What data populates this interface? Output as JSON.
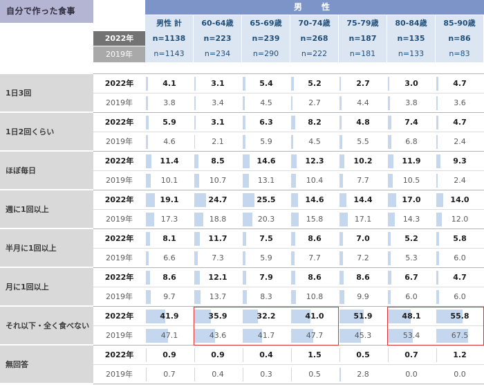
{
  "title": "自分で作った食事",
  "group_header": "男　性",
  "year_labels": {
    "y2022": "2022年",
    "y2019": "2019年"
  },
  "colors": {
    "title_bg": "#B4B4D3",
    "group_header_bg": "#7C94C7",
    "column_header_bg": "#DCE6F2",
    "header_text": "#1F4E79",
    "year2022_header_bg": "#737373",
    "year2019_header_bg": "#A9A9A9",
    "category_bg": "#D9D9D9",
    "bar": "#C5D7EE",
    "highlight_border": "#e03131"
  },
  "chart_data": {
    "type": "table",
    "title": "自分で作った食事",
    "group_header": "男　性",
    "columns": [
      "男性 計",
      "60-64歳",
      "65-69歳",
      "70-74歳",
      "75-79歳",
      "80-84歳",
      "85-90歳"
    ],
    "n_2022": [
      "n=1138",
      "n=223",
      "n=239",
      "n=268",
      "n=187",
      "n=135",
      "n=86"
    ],
    "n_2019": [
      "n=1143",
      "n=234",
      "n=290",
      "n=222",
      "n=181",
      "n=133",
      "n=83"
    ],
    "bar_scale_max": 100,
    "rows": [
      {
        "category": "1日3回",
        "v2022": [
          4.1,
          3.1,
          5.4,
          5.2,
          2.7,
          3.0,
          4.7
        ],
        "v2019": [
          3.8,
          3.4,
          4.5,
          2.7,
          4.4,
          3.8,
          3.6
        ]
      },
      {
        "category": "1日2回くらい",
        "v2022": [
          5.9,
          3.1,
          6.3,
          8.2,
          4.8,
          7.4,
          4.7
        ],
        "v2019": [
          4.6,
          2.1,
          5.9,
          4.5,
          5.5,
          6.8,
          2.4
        ]
      },
      {
        "category": "ほぼ毎日",
        "v2022": [
          11.4,
          8.5,
          14.6,
          12.3,
          10.2,
          11.9,
          9.3
        ],
        "v2019": [
          10.1,
          10.7,
          13.1,
          10.4,
          7.7,
          10.5,
          2.4
        ]
      },
      {
        "category": "週に1回以上",
        "v2022": [
          19.1,
          24.7,
          25.5,
          14.6,
          14.4,
          17.0,
          14.0
        ],
        "v2019": [
          17.3,
          18.8,
          20.3,
          15.8,
          17.1,
          14.3,
          12.0
        ]
      },
      {
        "category": "半月に1回以上",
        "v2022": [
          8.1,
          11.7,
          7.5,
          8.6,
          7.0,
          5.2,
          5.8
        ],
        "v2019": [
          6.6,
          7.3,
          5.9,
          7.7,
          7.2,
          5.3,
          6.0
        ]
      },
      {
        "category": "月に1回以上",
        "v2022": [
          8.6,
          12.1,
          7.9,
          8.6,
          8.6,
          6.7,
          4.7
        ],
        "v2019": [
          9.7,
          13.7,
          8.3,
          10.8,
          9.9,
          6.0,
          6.0
        ]
      },
      {
        "category": "それ以下・全く食べない",
        "v2022": [
          41.9,
          35.9,
          32.2,
          41.0,
          51.9,
          48.1,
          55.8
        ],
        "v2019": [
          47.1,
          43.6,
          41.7,
          47.7,
          45.3,
          53.4,
          67.5
        ]
      },
      {
        "category": "無回答",
        "v2022": [
          0.9,
          0.9,
          0.4,
          1.5,
          0.5,
          0.7,
          1.2
        ],
        "v2019": [
          0.7,
          0.4,
          0.3,
          0.5,
          2.8,
          0.0,
          0.0
        ]
      }
    ],
    "highlights": [
      {
        "category": "それ以下・全く食べない",
        "columns": [
          "60-64歳",
          "65-69歳",
          "70-74歳"
        ]
      },
      {
        "category": "それ以下・全く食べない",
        "columns": [
          "80-84歳",
          "85-90歳"
        ]
      }
    ]
  }
}
